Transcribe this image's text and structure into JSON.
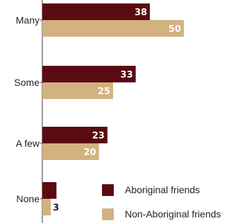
{
  "chart_data": {
    "type": "bar",
    "orientation": "horizontal",
    "categories": [
      "Many",
      "Some",
      "A few",
      "None"
    ],
    "series": [
      {
        "name": "Aboriginal friends",
        "color": "#5a0b12",
        "values": [
          38,
          33,
          23,
          5
        ]
      },
      {
        "name": "Non-Aboriginal friends",
        "color": "#d2b27f",
        "values": [
          50,
          25,
          20,
          3
        ]
      }
    ],
    "xlim": [
      0,
      60
    ],
    "grid": false,
    "legend": "bottom-right",
    "value_labels": true
  }
}
